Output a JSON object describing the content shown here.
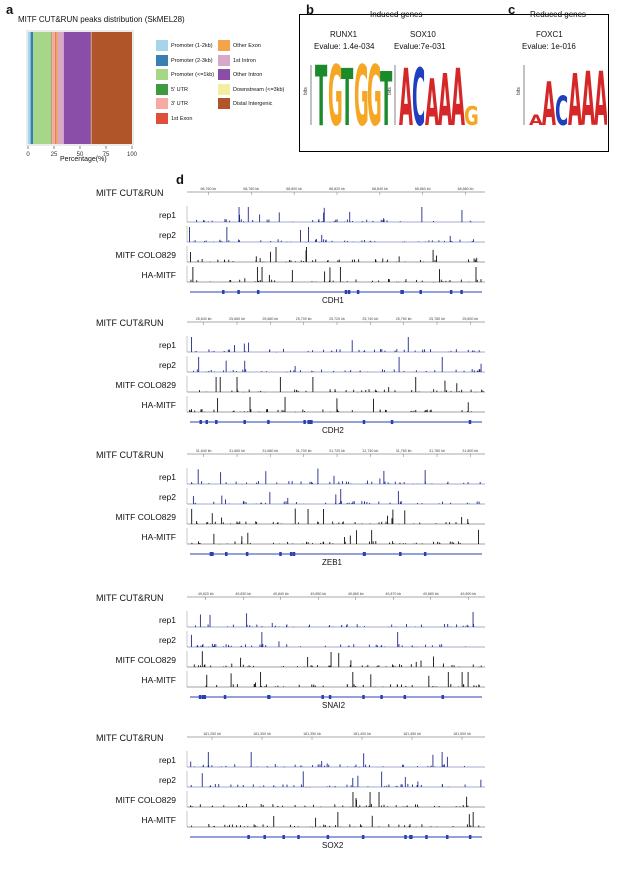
{
  "panel_a": {
    "letter": "a",
    "title": "MITF CUT&RUN peaks distribution (SkMEL28)",
    "xlabel": "Percentage(%)",
    "ticks": [
      "0",
      "25",
      "50",
      "75",
      "100"
    ],
    "chart_data": {
      "type": "bar",
      "title": "MITF CUT&RUN peaks distribution (SkMEL28)",
      "xlabel": "Percentage(%)",
      "ylabel": "",
      "xlim": [
        0,
        100
      ],
      "categories": [
        "SkMEL28"
      ],
      "series": [
        {
          "name": "Promoter (1-2kb)",
          "values": [
            2.5
          ],
          "color": "#a6d4e8"
        },
        {
          "name": "Promoter (2-3kb)",
          "values": [
            2.5
          ],
          "color": "#3a7fb4"
        },
        {
          "name": "Promoter (<=1kb)",
          "values": [
            17
          ],
          "color": "#a6d789"
        },
        {
          "name": "5' UTR",
          "values": [
            0.5
          ],
          "color": "#3f9a3f"
        },
        {
          "name": "3' UTR",
          "values": [
            3.5
          ],
          "color": "#f7a9a3"
        },
        {
          "name": "1st Exon",
          "values": [
            0.5
          ],
          "color": "#e04e3c"
        },
        {
          "name": "Other Exon",
          "values": [
            2
          ],
          "color": "#f6a24a"
        },
        {
          "name": "1st Intron",
          "values": [
            6
          ],
          "color": "#d7a8c7"
        },
        {
          "name": "Other Intron",
          "values": [
            26
          ],
          "color": "#8a4ea8"
        },
        {
          "name": "Downstream (<=3kb)",
          "values": [
            0.5
          ],
          "color": "#f2eea0"
        },
        {
          "name": "Distal Intergenic",
          "values": [
            39
          ],
          "color": "#b0552a"
        }
      ]
    }
  },
  "panel_b": {
    "letter": "b",
    "title": "Induced genes",
    "motifs": [
      {
        "name": "RUNX1",
        "evalue": "Evalue: 1.4e-034",
        "letters": "TGTGGT"
      },
      {
        "name": "SOX10",
        "evalue": "Evalue:7e-031",
        "letters": "ACAAAG"
      }
    ]
  },
  "panel_c": {
    "letter": "c",
    "title": "Reduced genes",
    "motifs": [
      {
        "name": "FOXC1",
        "evalue": "Evalue: 1e-016",
        "letters": "AACAAA"
      }
    ]
  },
  "panel_d": {
    "letter": "d",
    "header_label": "MITF CUT&RUN",
    "track_labels": [
      "rep1",
      "rep2",
      "MITF COLO829",
      "HA-MITF"
    ],
    "bits_label": "bits",
    "loci": [
      {
        "gene": "CDH1",
        "coords": [
          "68,760 kb",
          "68,780 kb",
          "68,800 kb",
          "68,820 kb",
          "68,840 kb",
          "68,860 kb",
          "68,880 kb"
        ]
      },
      {
        "gene": "CDH2",
        "coords": [
          "25,640 kb",
          "25,660 kb",
          "25,680 kb",
          "25,700 kb",
          "25,720 kb",
          "25,740 kb",
          "25,760 kb",
          "25,780 kb",
          "25,800 kb"
        ]
      },
      {
        "gene": "ZEB1",
        "coords": [
          "31,640 kb",
          "31,660 kb",
          "31,680 kb",
          "31,700 kb",
          "31,720 kb",
          "31,740 kb",
          "31,760 kb",
          "31,780 kb",
          "31,800 kb"
        ]
      },
      {
        "gene": "SNAI2",
        "coords": [
          "49,820 kb",
          "49,830 kb",
          "49,840 kb",
          "49,850 kb",
          "49,860 kb",
          "49,870 kb",
          "49,880 kb",
          "49,890 kb"
        ]
      },
      {
        "gene": "SOX2",
        "coords": [
          "181,250 kb",
          "181,300 kb",
          "181,350 kb",
          "181,400 kb",
          "181,450 kb",
          "181,500 kb"
        ]
      }
    ]
  },
  "colors": {
    "cutrun_blue": "#1f2a8c",
    "chip_black": "#111111",
    "gene_blue": "#2b3fb0"
  }
}
